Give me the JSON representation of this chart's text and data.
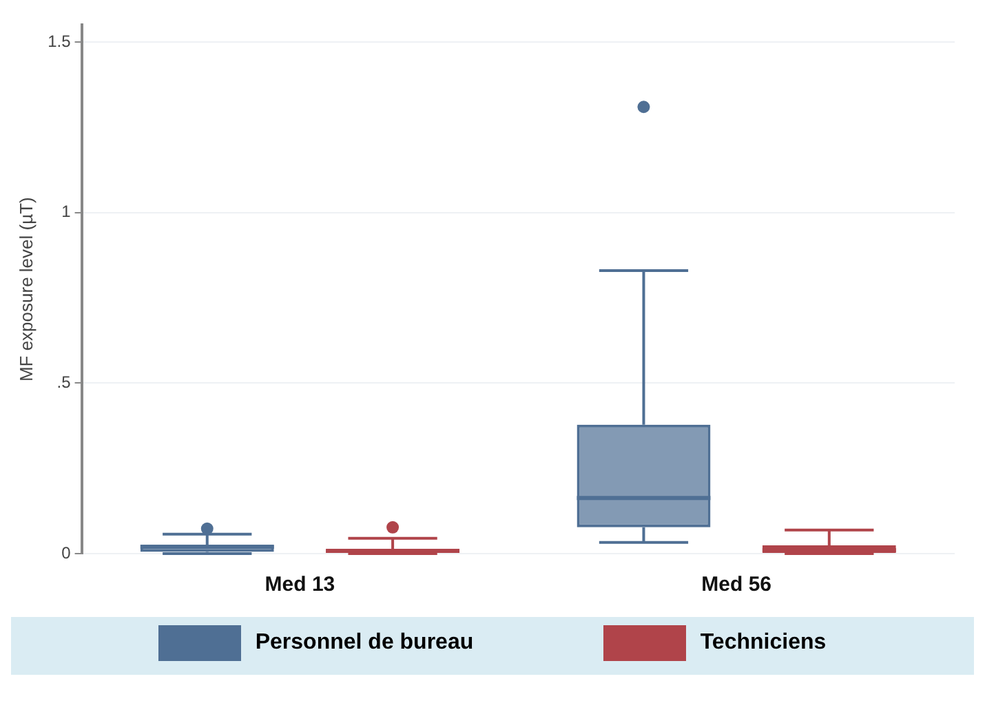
{
  "chart_data": {
    "type": "box",
    "ylabel": "MF exposure level (µT)",
    "categories": [
      "Med 13",
      "Med 56"
    ],
    "series": [
      {
        "name": "Personnel de bureau",
        "color": "#4f6f94",
        "boxes": [
          {
            "low": 0,
            "q1": 0.005,
            "median": 0.02,
            "q3": 0.024,
            "high": 0.057,
            "outliers": [
              0.073
            ]
          },
          {
            "low": 0.033,
            "q1": 0.077,
            "median": 0.163,
            "q3": 0.378,
            "high": 0.83,
            "outliers": [
              1.31
            ]
          }
        ]
      },
      {
        "name": "Techniciens",
        "color": "#b0444a",
        "boxes": [
          {
            "low": 0,
            "q1": 0,
            "median": 0.008,
            "q3": 0.013,
            "high": 0.045,
            "outliers": [
              0.077
            ]
          },
          {
            "low": 0,
            "q1": 0,
            "median": 0.01,
            "q3": 0.024,
            "high": 0.069
          }
        ]
      }
    ],
    "ylim": [
      0,
      1.55
    ],
    "yticks": [
      0,
      {
        "value": 0.5,
        "label": ".5"
      },
      1,
      1.5
    ],
    "grid": "y",
    "legend": "bottom"
  }
}
